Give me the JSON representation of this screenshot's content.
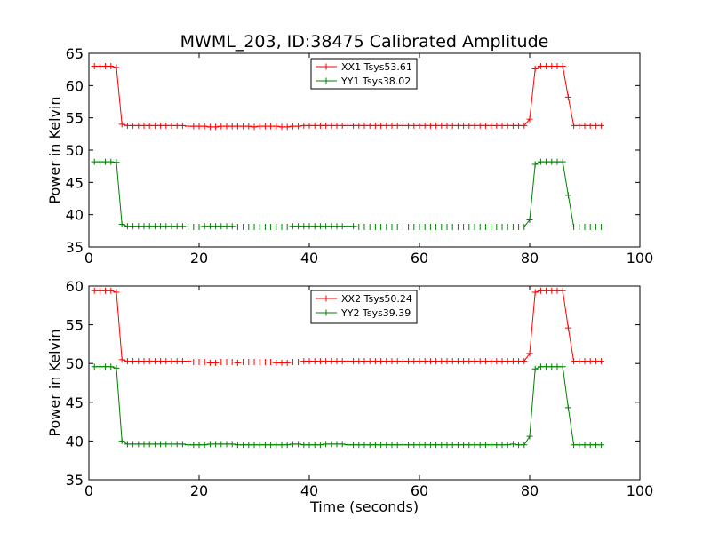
{
  "title": "MWML_203, ID:38475 Calibrated Amplitude",
  "colors": {
    "red": "#ff0000",
    "green": "#008000"
  },
  "chart_data": [
    {
      "type": "line",
      "xlabel": "",
      "ylabel": "Power in Kelvin",
      "xlim": [
        0,
        100
      ],
      "ylim": [
        35,
        65
      ],
      "xticks": [
        "0",
        "20",
        "40",
        "60",
        "80",
        "100"
      ],
      "yticks": [
        "35",
        "40",
        "45",
        "50",
        "55",
        "60",
        "65"
      ],
      "grid": false,
      "legend_position": "upper center",
      "series": [
        {
          "name": "XX1 Tsys53.61",
          "color": "#ff0000",
          "marker": "+",
          "x": [
            1,
            2,
            3,
            4,
            5,
            6,
            7,
            8,
            9,
            10,
            11,
            12,
            13,
            14,
            15,
            16,
            17,
            18,
            19,
            20,
            21,
            22,
            23,
            24,
            25,
            26,
            27,
            28,
            29,
            30,
            31,
            32,
            33,
            34,
            35,
            36,
            37,
            38,
            39,
            40,
            41,
            42,
            43,
            44,
            45,
            46,
            47,
            48,
            49,
            50,
            51,
            52,
            53,
            54,
            55,
            56,
            57,
            58,
            59,
            60,
            61,
            62,
            63,
            64,
            65,
            66,
            67,
            68,
            69,
            70,
            71,
            72,
            73,
            74,
            75,
            76,
            77,
            78,
            79,
            80,
            81,
            82,
            83,
            84,
            85,
            86,
            87,
            88,
            89,
            90,
            91,
            92,
            93
          ],
          "y": [
            63,
            63,
            63,
            63,
            62.8,
            54,
            53.8,
            53.8,
            53.8,
            53.8,
            53.8,
            53.8,
            53.8,
            53.8,
            53.8,
            53.8,
            53.8,
            53.7,
            53.7,
            53.7,
            53.7,
            53.6,
            53.6,
            53.7,
            53.7,
            53.7,
            53.7,
            53.7,
            53.7,
            53.6,
            53.7,
            53.7,
            53.7,
            53.7,
            53.6,
            53.6,
            53.7,
            53.7,
            53.8,
            53.8,
            53.8,
            53.8,
            53.8,
            53.8,
            53.8,
            53.8,
            53.8,
            53.8,
            53.8,
            53.8,
            53.8,
            53.8,
            53.8,
            53.8,
            53.8,
            53.8,
            53.8,
            53.8,
            53.8,
            53.8,
            53.8,
            53.8,
            53.8,
            53.8,
            53.8,
            53.8,
            53.8,
            53.8,
            53.8,
            53.8,
            53.8,
            53.8,
            53.8,
            53.8,
            53.8,
            53.8,
            53.8,
            53.8,
            53.8,
            54.8,
            62.6,
            63,
            63,
            63,
            63,
            63,
            58.2,
            53.8,
            53.8,
            53.8,
            53.8,
            53.8,
            53.8
          ]
        },
        {
          "name": "YY1 Tsys38.02",
          "color": "#008000",
          "marker": "+",
          "x": [
            1,
            2,
            3,
            4,
            5,
            6,
            7,
            8,
            9,
            10,
            11,
            12,
            13,
            14,
            15,
            16,
            17,
            18,
            19,
            20,
            21,
            22,
            23,
            24,
            25,
            26,
            27,
            28,
            29,
            30,
            31,
            32,
            33,
            34,
            35,
            36,
            37,
            38,
            39,
            40,
            41,
            42,
            43,
            44,
            45,
            46,
            47,
            48,
            49,
            50,
            51,
            52,
            53,
            54,
            55,
            56,
            57,
            58,
            59,
            60,
            61,
            62,
            63,
            64,
            65,
            66,
            67,
            68,
            69,
            70,
            71,
            72,
            73,
            74,
            75,
            76,
            77,
            78,
            79,
            80,
            81,
            82,
            83,
            84,
            85,
            86,
            87,
            88,
            89,
            90,
            91,
            92,
            93
          ],
          "y": [
            48.2,
            48.2,
            48.2,
            48.2,
            48.1,
            38.5,
            38.2,
            38.2,
            38.2,
            38.2,
            38.2,
            38.2,
            38.2,
            38.2,
            38.2,
            38.2,
            38.2,
            38.1,
            38.1,
            38.1,
            38.2,
            38.2,
            38.2,
            38.2,
            38.2,
            38.2,
            38.1,
            38.1,
            38.1,
            38.1,
            38.1,
            38.1,
            38.1,
            38.1,
            38.1,
            38.1,
            38.2,
            38.2,
            38.2,
            38.2,
            38.2,
            38.2,
            38.2,
            38.2,
            38.2,
            38.2,
            38.2,
            38.2,
            38.1,
            38.1,
            38.1,
            38.1,
            38.1,
            38.1,
            38.1,
            38.1,
            38.1,
            38.1,
            38.1,
            38.1,
            38.1,
            38.1,
            38.1,
            38.1,
            38.1,
            38.1,
            38.1,
            38.1,
            38.1,
            38.1,
            38.1,
            38.1,
            38.1,
            38.1,
            38.1,
            38.1,
            38.1,
            38.1,
            38.1,
            39.2,
            47.8,
            48.2,
            48.2,
            48.2,
            48.2,
            48.2,
            43,
            38.1,
            38.1,
            38.1,
            38.1,
            38.1,
            38.1
          ]
        }
      ]
    },
    {
      "type": "line",
      "xlabel": "Time (seconds)",
      "ylabel": "Power in Kelvin",
      "xlim": [
        0,
        100
      ],
      "ylim": [
        35,
        60
      ],
      "xticks": [
        "0",
        "20",
        "40",
        "60",
        "80",
        "100"
      ],
      "yticks": [
        "35",
        "40",
        "45",
        "50",
        "55",
        "60"
      ],
      "grid": false,
      "legend_position": "upper center",
      "series": [
        {
          "name": "XX2 Tsys50.24",
          "color": "#ff0000",
          "marker": "+",
          "x": [
            1,
            2,
            3,
            4,
            5,
            6,
            7,
            8,
            9,
            10,
            11,
            12,
            13,
            14,
            15,
            16,
            17,
            18,
            19,
            20,
            21,
            22,
            23,
            24,
            25,
            26,
            27,
            28,
            29,
            30,
            31,
            32,
            33,
            34,
            35,
            36,
            37,
            38,
            39,
            40,
            41,
            42,
            43,
            44,
            45,
            46,
            47,
            48,
            49,
            50,
            51,
            52,
            53,
            54,
            55,
            56,
            57,
            58,
            59,
            60,
            61,
            62,
            63,
            64,
            65,
            66,
            67,
            68,
            69,
            70,
            71,
            72,
            73,
            74,
            75,
            76,
            77,
            78,
            79,
            80,
            81,
            82,
            83,
            84,
            85,
            86,
            87,
            88,
            89,
            90,
            91,
            92,
            93
          ],
          "y": [
            59.4,
            59.4,
            59.4,
            59.4,
            59.2,
            50.5,
            50.3,
            50.3,
            50.3,
            50.3,
            50.3,
            50.3,
            50.3,
            50.3,
            50.3,
            50.3,
            50.3,
            50.3,
            50.2,
            50.2,
            50.2,
            50.1,
            50.1,
            50.2,
            50.2,
            50.2,
            50.1,
            50.2,
            50.2,
            50.2,
            50.2,
            50.2,
            50.2,
            50.1,
            50.1,
            50.1,
            50.2,
            50.2,
            50.3,
            50.3,
            50.3,
            50.3,
            50.3,
            50.3,
            50.3,
            50.3,
            50.3,
            50.3,
            50.3,
            50.3,
            50.3,
            50.3,
            50.3,
            50.3,
            50.3,
            50.3,
            50.3,
            50.3,
            50.3,
            50.3,
            50.3,
            50.3,
            50.3,
            50.3,
            50.3,
            50.3,
            50.3,
            50.3,
            50.3,
            50.3,
            50.3,
            50.3,
            50.3,
            50.3,
            50.3,
            50.3,
            50.3,
            50.3,
            50.3,
            51.3,
            59.2,
            59.4,
            59.4,
            59.4,
            59.4,
            59.4,
            54.6,
            50.3,
            50.3,
            50.3,
            50.3,
            50.3,
            50.3
          ]
        },
        {
          "name": "YY2 Tsys39.39",
          "color": "#008000",
          "marker": "+",
          "x": [
            1,
            2,
            3,
            4,
            5,
            6,
            7,
            8,
            9,
            10,
            11,
            12,
            13,
            14,
            15,
            16,
            17,
            18,
            19,
            20,
            21,
            22,
            23,
            24,
            25,
            26,
            27,
            28,
            29,
            30,
            31,
            32,
            33,
            34,
            35,
            36,
            37,
            38,
            39,
            40,
            41,
            42,
            43,
            44,
            45,
            46,
            47,
            48,
            49,
            50,
            51,
            52,
            53,
            54,
            55,
            56,
            57,
            58,
            59,
            60,
            61,
            62,
            63,
            64,
            65,
            66,
            67,
            68,
            69,
            70,
            71,
            72,
            73,
            74,
            75,
            76,
            77,
            78,
            79,
            80,
            81,
            82,
            83,
            84,
            85,
            86,
            87,
            88,
            89,
            90,
            91,
            92,
            93
          ],
          "y": [
            49.6,
            49.6,
            49.6,
            49.6,
            49.4,
            40,
            39.6,
            39.6,
            39.6,
            39.6,
            39.6,
            39.6,
            39.6,
            39.6,
            39.6,
            39.6,
            39.6,
            39.5,
            39.5,
            39.5,
            39.5,
            39.6,
            39.6,
            39.6,
            39.6,
            39.6,
            39.5,
            39.5,
            39.5,
            39.5,
            39.5,
            39.5,
            39.5,
            39.5,
            39.5,
            39.5,
            39.6,
            39.6,
            39.5,
            39.5,
            39.5,
            39.5,
            39.6,
            39.6,
            39.6,
            39.6,
            39.5,
            39.5,
            39.5,
            39.5,
            39.5,
            39.5,
            39.5,
            39.5,
            39.5,
            39.5,
            39.5,
            39.5,
            39.5,
            39.5,
            39.5,
            39.5,
            39.5,
            39.5,
            39.5,
            39.5,
            39.5,
            39.5,
            39.5,
            39.5,
            39.5,
            39.5,
            39.5,
            39.5,
            39.5,
            39.5,
            39.6,
            39.5,
            39.5,
            40.6,
            49.3,
            49.6,
            49.6,
            49.6,
            49.6,
            49.6,
            44.3,
            39.5,
            39.5,
            39.5,
            39.5,
            39.5,
            39.5
          ]
        }
      ]
    }
  ]
}
